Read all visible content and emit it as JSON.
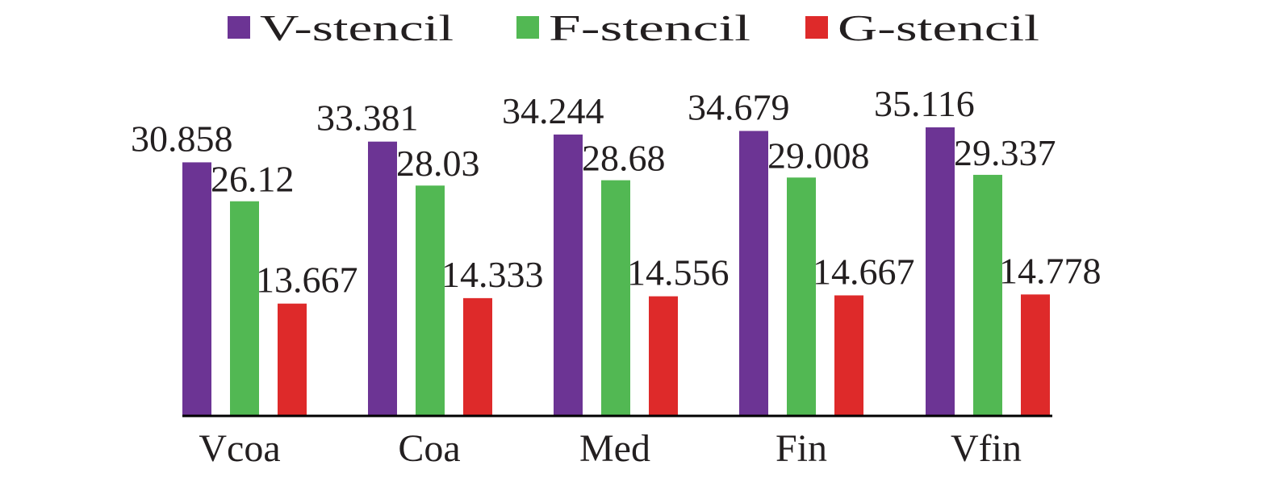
{
  "chart_data": {
    "type": "bar",
    "categories": [
      "Vcoa",
      "Coa",
      "Med",
      "Fin",
      "Vfin"
    ],
    "series": [
      {
        "name": "V-stencil",
        "color": "#6c3494",
        "values": [
          30.858,
          33.381,
          34.244,
          34.679,
          35.116
        ],
        "labels": [
          "30.858",
          "33.381",
          "34.244",
          "34.679",
          "35.116"
        ]
      },
      {
        "name": "F-stencil",
        "color": "#52b853",
        "values": [
          26.12,
          28.03,
          28.68,
          29.008,
          29.337
        ],
        "labels": [
          "26.12",
          "28.03",
          "28.68",
          "29.008",
          "29.337"
        ]
      },
      {
        "name": "G-stencil",
        "color": "#de2a2a",
        "values": [
          13.667,
          14.333,
          14.556,
          14.667,
          14.778
        ],
        "labels": [
          "13.667",
          "14.333",
          "14.556",
          "14.667",
          "14.778"
        ]
      }
    ],
    "title": "",
    "xlabel": "",
    "ylabel": "",
    "ylim": [
      0,
      35.116
    ],
    "grid": false,
    "legend": "top",
    "axis_color": "#000000"
  }
}
